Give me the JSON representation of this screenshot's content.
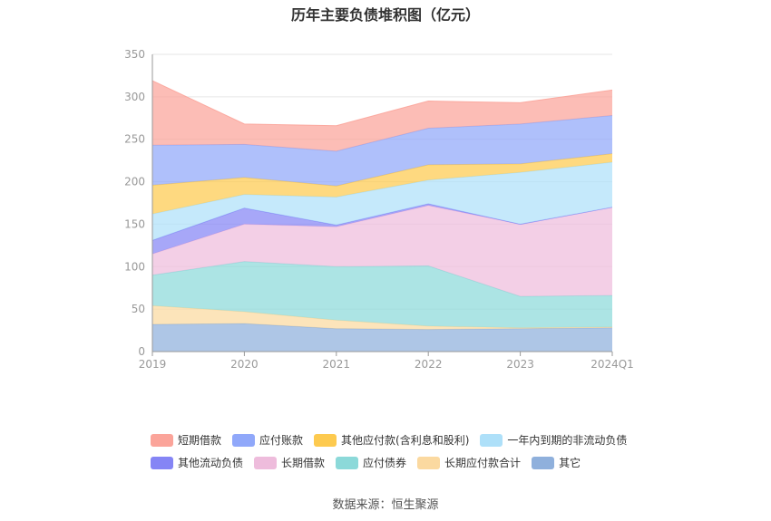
{
  "title": "历年主要负债堆积图（亿元）",
  "source": "数据来源：恒生聚源",
  "chart_data": {
    "type": "area",
    "stacked": true,
    "categories": [
      "2019",
      "2020",
      "2021",
      "2022",
      "2023",
      "2024Q1"
    ],
    "ylim": [
      0,
      350
    ],
    "yticks": [
      0,
      50,
      100,
      150,
      200,
      250,
      300,
      350
    ],
    "grid": true,
    "legend_position": "bottom",
    "series": [
      {
        "name": "其它",
        "color": "#8fb0dc",
        "values": [
          32,
          33,
          27,
          26,
          27,
          28
        ]
      },
      {
        "name": "长期应付款合计",
        "color": "#fbd9a0",
        "values": [
          22,
          14,
          10,
          4,
          1,
          1
        ]
      },
      {
        "name": "应付债券",
        "color": "#8cd9d9",
        "values": [
          36,
          59,
          63,
          71,
          37,
          37
        ]
      },
      {
        "name": "长期借款",
        "color": "#eebcdc",
        "values": [
          25,
          44,
          47,
          71,
          85,
          104
        ]
      },
      {
        "name": "其他流动负债",
        "color": "#8585f5",
        "values": [
          16,
          19,
          2,
          2,
          0,
          0
        ]
      },
      {
        "name": "一年内到期的非流动负债",
        "color": "#aee0f9",
        "values": [
          31,
          16,
          33,
          28,
          61,
          53
        ]
      },
      {
        "name": "其他应付款(含利息和股利)",
        "color": "#fdca4f",
        "values": [
          34,
          20,
          13,
          18,
          10,
          10
        ]
      },
      {
        "name": "应付账款",
        "color": "#90a8fa",
        "values": [
          47,
          39,
          41,
          43,
          47,
          45
        ]
      },
      {
        "name": "短期借款",
        "color": "#fba49a",
        "values": [
          76,
          24,
          30,
          32,
          25,
          30
        ]
      }
    ]
  },
  "legend": [
    {
      "label": "短期借款",
      "color": "#fba49a"
    },
    {
      "label": "应付账款",
      "color": "#90a8fa"
    },
    {
      "label": "其他应付款(含利息和股利)",
      "color": "#fdca4f"
    },
    {
      "label": "一年内到期的非流动负债",
      "color": "#aee0f9"
    },
    {
      "label": "其他流动负债",
      "color": "#8585f5"
    },
    {
      "label": "长期借款",
      "color": "#eebcdc"
    },
    {
      "label": "应付债券",
      "color": "#8cd9d9"
    },
    {
      "label": "长期应付款合计",
      "color": "#fbd9a0"
    },
    {
      "label": "其它",
      "color": "#8fb0dc"
    }
  ]
}
